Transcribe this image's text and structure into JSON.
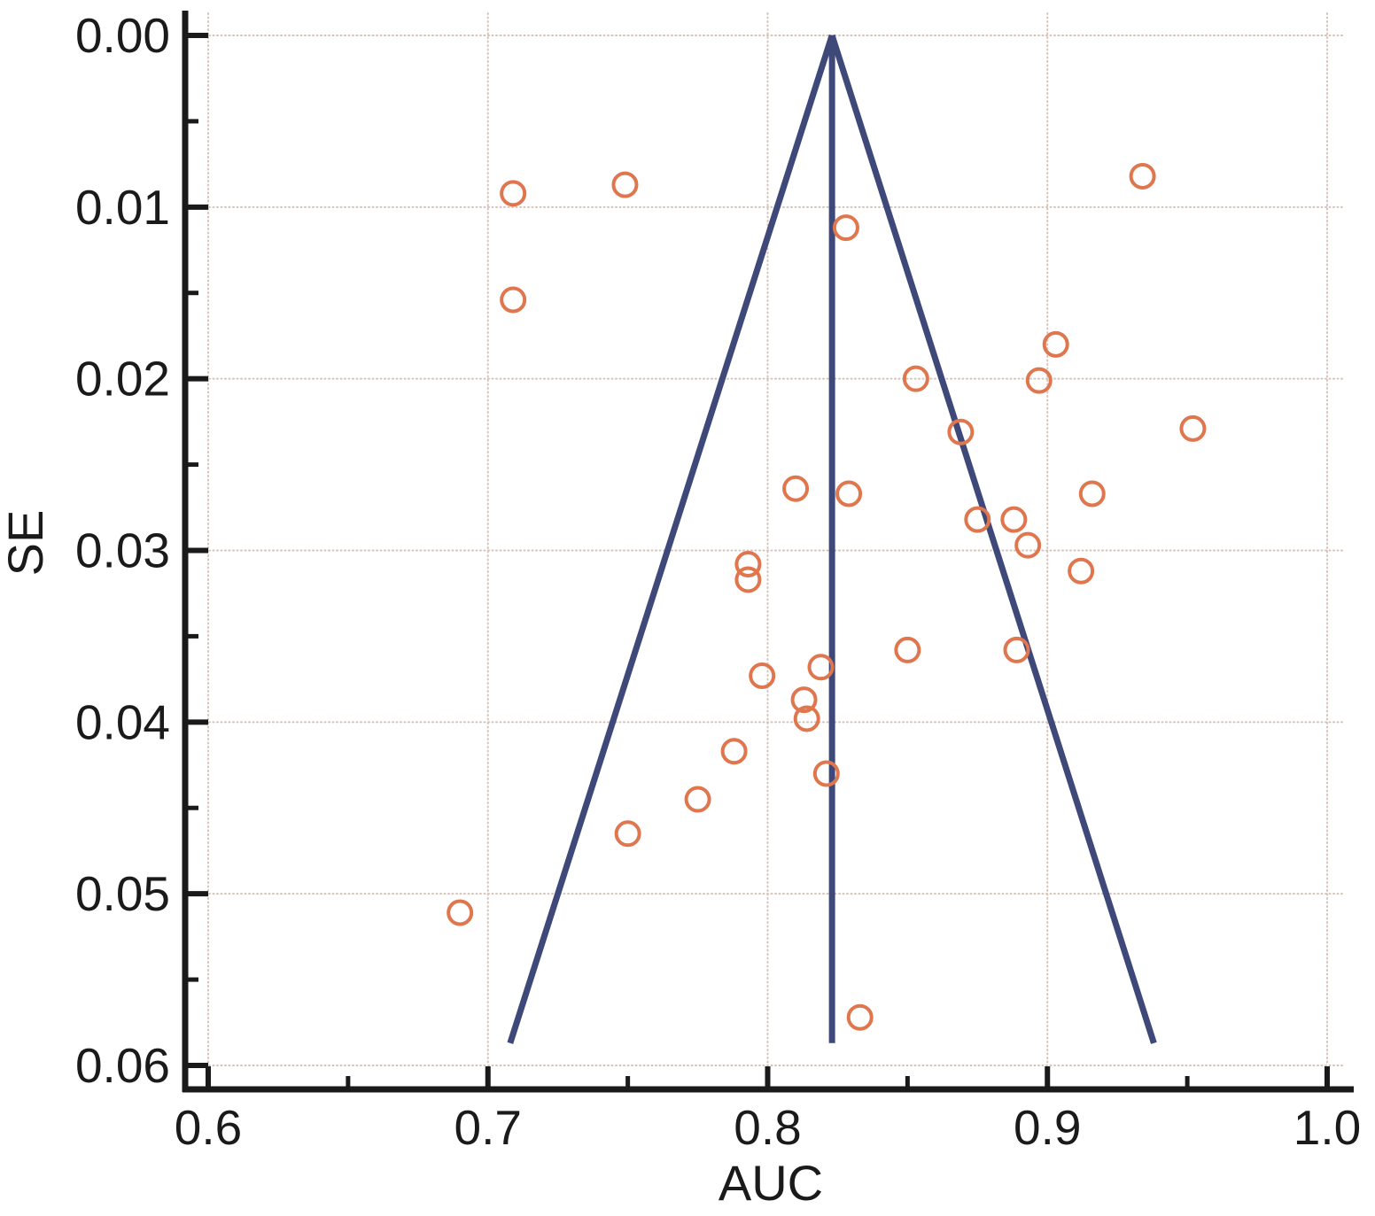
{
  "chart_data": {
    "type": "scatter",
    "subtype": "funnel-plot",
    "title": "",
    "xlabel": "AUC",
    "ylabel": "SE",
    "xlim": [
      0.6,
      1.0
    ],
    "ylim": [
      0.0,
      0.06
    ],
    "y_axis_inverted": true,
    "grid": "dotted-major",
    "legend": "none",
    "x_ticks_major": [
      0.6,
      0.7,
      0.8,
      0.9,
      1.0
    ],
    "x_tick_labels": [
      "0.6",
      "0.7",
      "0.8",
      "0.9",
      "1.0"
    ],
    "x_ticks_minor": [
      0.65,
      0.75,
      0.85,
      0.95
    ],
    "y_ticks_major": [
      0.0,
      0.01,
      0.02,
      0.03,
      0.04,
      0.05,
      0.06
    ],
    "y_tick_labels": [
      "0.00",
      "0.01",
      "0.02",
      "0.03",
      "0.04",
      "0.05",
      "0.06"
    ],
    "y_ticks_minor": [
      0.005,
      0.015,
      0.025,
      0.035,
      0.045,
      0.055
    ],
    "funnel": {
      "center_auc": 0.823,
      "apex_se": 0.0,
      "base_se": 0.0587,
      "ci_multiplier": 1.96,
      "left_base_auc": 0.708,
      "right_base_auc": 0.938
    },
    "points": [
      {
        "auc": 0.709,
        "se": 0.0092
      },
      {
        "auc": 0.749,
        "se": 0.0087
      },
      {
        "auc": 0.709,
        "se": 0.0154
      },
      {
        "auc": 0.828,
        "se": 0.0112
      },
      {
        "auc": 0.934,
        "se": 0.0082
      },
      {
        "auc": 0.903,
        "se": 0.018
      },
      {
        "auc": 0.853,
        "se": 0.02
      },
      {
        "auc": 0.897,
        "se": 0.0201
      },
      {
        "auc": 0.869,
        "se": 0.0231
      },
      {
        "auc": 0.952,
        "se": 0.0229
      },
      {
        "auc": 0.81,
        "se": 0.0264
      },
      {
        "auc": 0.829,
        "se": 0.0267
      },
      {
        "auc": 0.916,
        "se": 0.0267
      },
      {
        "auc": 0.875,
        "se": 0.0282
      },
      {
        "auc": 0.888,
        "se": 0.0282
      },
      {
        "auc": 0.893,
        "se": 0.0297
      },
      {
        "auc": 0.912,
        "se": 0.0312
      },
      {
        "auc": 0.793,
        "se": 0.0308
      },
      {
        "auc": 0.793,
        "se": 0.0317
      },
      {
        "auc": 0.85,
        "se": 0.0358
      },
      {
        "auc": 0.889,
        "se": 0.0358
      },
      {
        "auc": 0.798,
        "se": 0.0373
      },
      {
        "auc": 0.819,
        "se": 0.0368
      },
      {
        "auc": 0.813,
        "se": 0.0387
      },
      {
        "auc": 0.814,
        "se": 0.0398
      },
      {
        "auc": 0.788,
        "se": 0.0417
      },
      {
        "auc": 0.821,
        "se": 0.043
      },
      {
        "auc": 0.775,
        "se": 0.0445
      },
      {
        "auc": 0.75,
        "se": 0.0465
      },
      {
        "auc": 0.69,
        "se": 0.0511
      },
      {
        "auc": 0.833,
        "se": 0.0572
      }
    ],
    "colors": {
      "marker": "#E0764E",
      "funnel_line": "#3E4879",
      "grid": "#D5C2B8",
      "axis": "#1A1A1A",
      "text": "#1A1A1A",
      "background": "#FFFFFF"
    }
  }
}
